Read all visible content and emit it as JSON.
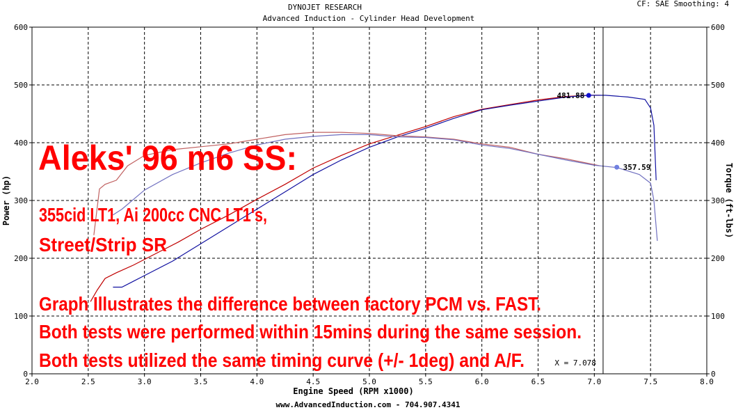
{
  "header": {
    "company": "DYNOJET RESEARCH",
    "subtitle": "Advanced Induction - Cylinder Head Development",
    "cf_info": "CF: SAE  Smoothing: 4"
  },
  "footer": {
    "website": "www.AdvancedInduction.com  -  704.907.4341"
  },
  "overlay": {
    "title": "Aleks' 96 m6 SS:",
    "spec_line1": "355cid LT1, Ai 200cc CNC LT1's,",
    "spec_line2": "Street/Strip SR",
    "note_line1": "Graph Illustrates the difference between factory PCM vs. FAST.",
    "note_line2": "Both tests were performed within 15mins during the same session.",
    "note_line3": "Both tests utilized the same timing curve (+/- 1deg) and A/F."
  },
  "colors": {
    "fast": "#c00000",
    "pcm": "#1010a0",
    "overlay_text": "#ff0000",
    "marker": "#3030d0"
  },
  "chart_data": {
    "type": "line",
    "xlabel": "Engine Speed (RPM x1000)",
    "ylabel": "Power (hp)",
    "y2label": "Torque (ft-lbs)",
    "xlim": [
      2.0,
      8.0
    ],
    "ylim": [
      0,
      600
    ],
    "y2lim": [
      0,
      600
    ],
    "x_ticks": [
      "2.0",
      "2.5",
      "3.0",
      "3.5",
      "4.0",
      "4.5",
      "5.0",
      "5.5",
      "6.0",
      "6.5",
      "7.0",
      "7.5",
      "8.0"
    ],
    "y_ticks": [
      "0",
      "100",
      "200",
      "300",
      "400",
      "500",
      "600"
    ],
    "grid": true,
    "cursor": {
      "x": 7.078,
      "label": "X = 7.078"
    },
    "markers": [
      {
        "series": "hp",
        "x": 6.95,
        "y": 481.88,
        "label": "481.88"
      },
      {
        "series": "tq",
        "x": 7.2,
        "y": 357.59,
        "label": "357.59"
      }
    ],
    "series": [
      {
        "color": "#c00000",
        "axis": "left",
        "points": [
          [
            2.52,
            125
          ],
          [
            2.58,
            145
          ],
          [
            2.65,
            165
          ],
          [
            2.75,
            175
          ],
          [
            2.9,
            188
          ],
          [
            3.1,
            208
          ],
          [
            3.3,
            228
          ],
          [
            3.5,
            250
          ],
          [
            3.75,
            275
          ],
          [
            4.0,
            302
          ],
          [
            4.25,
            328
          ],
          [
            4.5,
            356
          ],
          [
            4.75,
            378
          ],
          [
            5.0,
            398
          ],
          [
            5.25,
            413
          ],
          [
            5.5,
            428
          ],
          [
            5.75,
            445
          ],
          [
            6.0,
            458
          ],
          [
            6.25,
            466
          ],
          [
            6.5,
            474
          ],
          [
            6.75,
            480
          ],
          [
            6.95,
            482
          ],
          [
            7.05,
            482
          ]
        ]
      },
      {
        "color": "#1010a0",
        "axis": "left",
        "points": [
          [
            2.72,
            150
          ],
          [
            2.8,
            150
          ],
          [
            2.9,
            160
          ],
          [
            3.0,
            170
          ],
          [
            3.25,
            195
          ],
          [
            3.5,
            225
          ],
          [
            3.75,
            255
          ],
          [
            4.0,
            285
          ],
          [
            4.25,
            315
          ],
          [
            4.5,
            345
          ],
          [
            4.75,
            370
          ],
          [
            5.0,
            392
          ],
          [
            5.25,
            410
          ],
          [
            5.5,
            425
          ],
          [
            5.75,
            442
          ],
          [
            6.0,
            457
          ],
          [
            6.25,
            465
          ],
          [
            6.5,
            472
          ],
          [
            6.75,
            479
          ],
          [
            6.95,
            482
          ],
          [
            7.1,
            482
          ],
          [
            7.3,
            479
          ],
          [
            7.45,
            475
          ],
          [
            7.5,
            460
          ],
          [
            7.53,
            430
          ],
          [
            7.55,
            335
          ]
        ]
      },
      {
        "color": "#c06060",
        "axis": "right",
        "points": [
          [
            2.55,
            240
          ],
          [
            2.6,
            320
          ],
          [
            2.65,
            328
          ],
          [
            2.75,
            335
          ],
          [
            2.85,
            360
          ],
          [
            3.0,
            378
          ],
          [
            3.25,
            388
          ],
          [
            3.5,
            393
          ],
          [
            3.75,
            398
          ],
          [
            4.0,
            406
          ],
          [
            4.25,
            414
          ],
          [
            4.5,
            418
          ],
          [
            4.75,
            418
          ],
          [
            5.0,
            416
          ],
          [
            5.25,
            412
          ],
          [
            5.5,
            410
          ],
          [
            5.75,
            406
          ],
          [
            6.0,
            398
          ],
          [
            6.25,
            392
          ],
          [
            6.5,
            380
          ],
          [
            6.75,
            372
          ],
          [
            7.0,
            362
          ],
          [
            7.05,
            360
          ]
        ]
      },
      {
        "color": "#7070c0",
        "axis": "right",
        "points": [
          [
            2.72,
            275
          ],
          [
            2.8,
            285
          ],
          [
            3.0,
            318
          ],
          [
            3.25,
            345
          ],
          [
            3.5,
            365
          ],
          [
            3.75,
            382
          ],
          [
            4.0,
            396
          ],
          [
            4.25,
            406
          ],
          [
            4.5,
            411
          ],
          [
            4.75,
            414
          ],
          [
            5.0,
            414
          ],
          [
            5.25,
            410
          ],
          [
            5.5,
            409
          ],
          [
            5.75,
            405
          ],
          [
            6.0,
            396
          ],
          [
            6.25,
            390
          ],
          [
            6.5,
            380
          ],
          [
            6.75,
            370
          ],
          [
            7.0,
            361
          ],
          [
            7.2,
            357
          ],
          [
            7.4,
            345
          ],
          [
            7.5,
            330
          ],
          [
            7.53,
            300
          ],
          [
            7.56,
            230
          ]
        ]
      }
    ]
  }
}
